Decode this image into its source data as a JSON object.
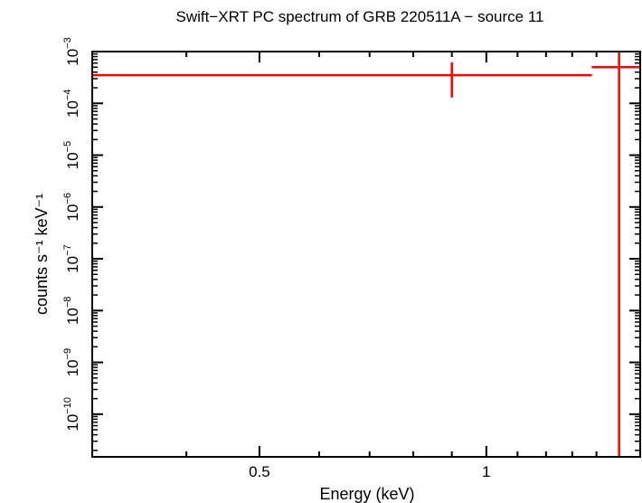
{
  "chart_data": {
    "type": "scatter",
    "title": "Swift−XRT PC spectrum of GRB 220511A − source 11",
    "xlabel": "Energy (keV)",
    "ylabel": "counts s⁻¹ keV⁻¹",
    "xscale": "log",
    "yscale": "log",
    "xlim": [
      0.3,
      1.6
    ],
    "ylim": [
      1.5e-11,
      0.001
    ],
    "x_tick_labels": [
      "0.5",
      "1"
    ],
    "x_ticks_major": [
      0.5,
      1
    ],
    "x_ticks_minor": [
      0.4,
      0.6,
      0.7,
      0.8,
      0.9,
      1.1,
      1.2,
      1.3,
      1.4,
      1.5
    ],
    "y_tick_labels": [
      {
        "base": "10",
        "exp": "−10",
        "value": 1e-10
      },
      {
        "base": "10",
        "exp": "−9",
        "value": 1e-09
      },
      {
        "base": "10",
        "exp": "−8",
        "value": 1e-08
      },
      {
        "base": "10",
        "exp": "−7",
        "value": 1e-07
      },
      {
        "base": "10",
        "exp": "−6",
        "value": 1e-06
      },
      {
        "base": "10",
        "exp": "−5",
        "value": 1e-05
      },
      {
        "base": "10",
        "exp": "−4",
        "value": 0.0001
      },
      {
        "base": "10",
        "exp": "−3",
        "value": 0.001
      }
    ],
    "series": [
      {
        "name": "source 11",
        "color": "#ff0000",
        "points": [
          {
            "x": 0.9,
            "xlo": 0.3,
            "xhi": 1.38,
            "y": 0.00035,
            "ylo": 0.00013,
            "yhi": 0.00062
          },
          {
            "x": 1.5,
            "xlo": 1.38,
            "xhi": 1.6,
            "y": 0.0005,
            "ylo": 1.5e-11,
            "yhi": 0.001
          }
        ]
      }
    ]
  }
}
